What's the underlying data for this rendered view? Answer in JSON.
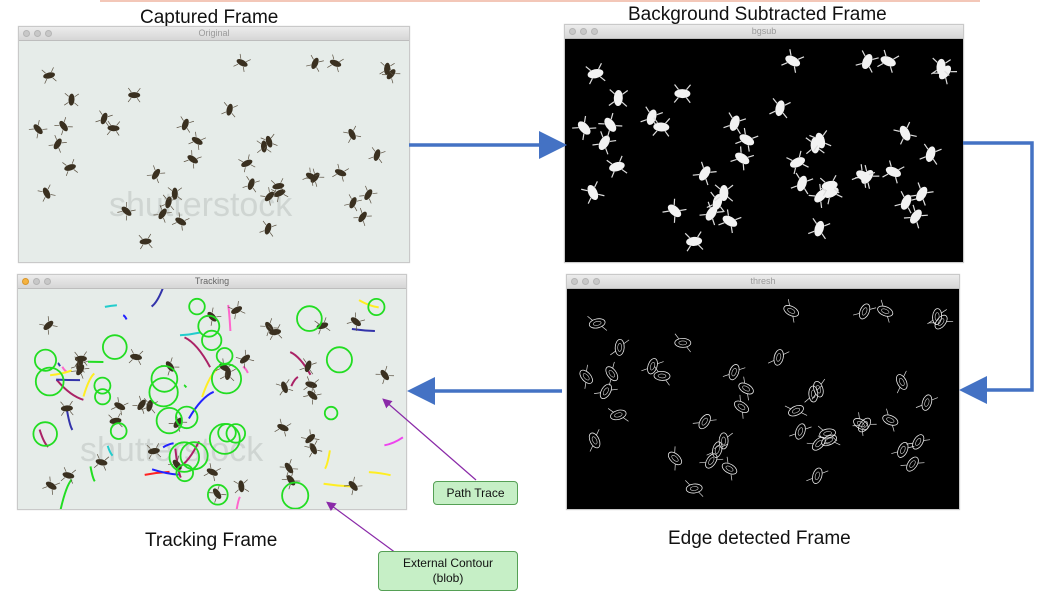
{
  "captions": {
    "captured": "Captured Frame",
    "bgsub": "Background Subtracted Frame",
    "tracking": "Tracking Frame",
    "edge": "Edge detected Frame"
  },
  "windows": {
    "original": {
      "title": "Original",
      "watermark": "shutterstock"
    },
    "bgsub": {
      "title": "bgsub"
    },
    "tracking": {
      "title": "Tracking",
      "watermark": "shutterstock"
    },
    "thresh": {
      "title": "thresh"
    }
  },
  "callouts": {
    "path_trace": "Path Trace",
    "external_contour_line1": "External Contour",
    "external_contour_line2": "(blob)"
  },
  "colors": {
    "flow_arrow": "#4472c4",
    "callout_arrow": "#8a2aa8",
    "callout_fill": "#c6efc6",
    "contour_circle": "#22dd22"
  }
}
